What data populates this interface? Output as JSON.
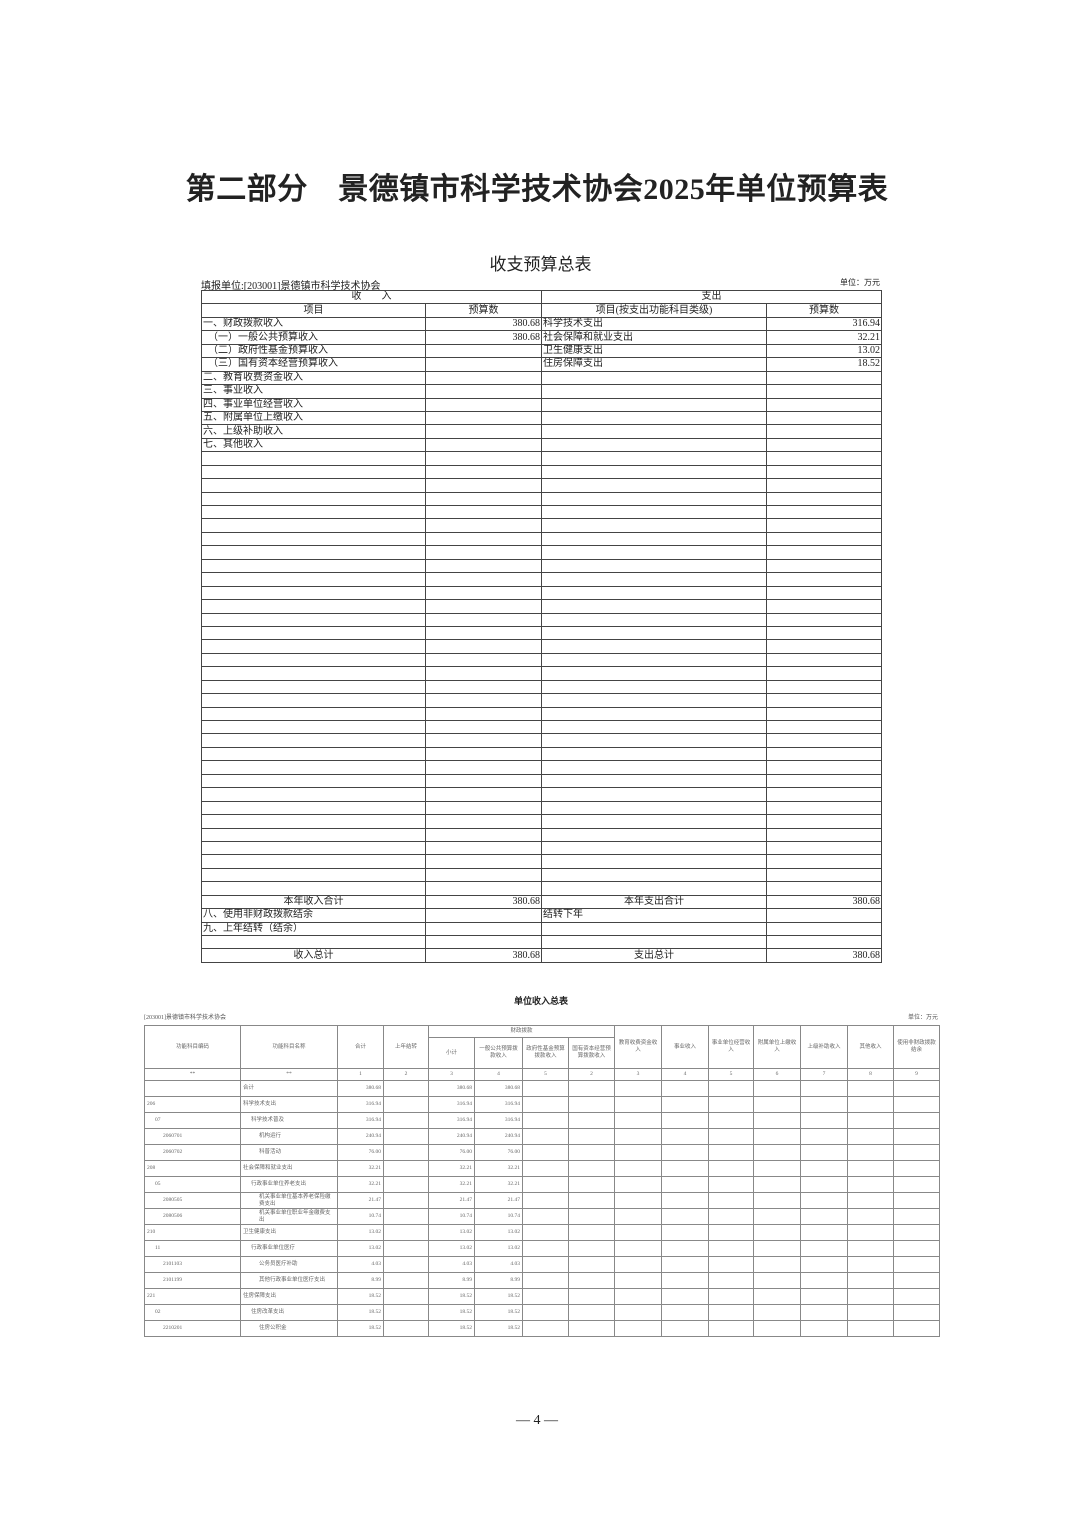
{
  "page_title": "第二部分　景德镇市科学技术协会2025年单位预算表",
  "table1": {
    "title": "收支预算总表",
    "unit_label": "填报单位:[203001]景德镇市科学技术协会",
    "unit": "单位：万元",
    "group_headers": [
      "收　　入",
      "支出"
    ],
    "headers": [
      "项目",
      "预算数",
      "项目(按支出功能科目类级)",
      "预算数"
    ],
    "rows": [
      [
        "一、财政拨款收入",
        "380.68",
        "科学技术支出",
        "316.94"
      ],
      [
        "　（一）一般公共预算收入",
        "380.68",
        "社会保障和就业支出",
        "32.21"
      ],
      [
        "　（二）政府性基金预算收入",
        "",
        "卫生健康支出",
        "13.02"
      ],
      [
        "　（三）国有资本经营预算收入",
        "",
        "住房保障支出",
        "18.52"
      ],
      [
        "二、教育收费资金收入",
        "",
        "",
        ""
      ],
      [
        "三、事业收入",
        "",
        "",
        ""
      ],
      [
        "四、事业单位经营收入",
        "",
        "",
        ""
      ],
      [
        "五、附属单位上缴收入",
        "",
        "",
        ""
      ],
      [
        "六、上级补助收入",
        "",
        "",
        ""
      ],
      [
        "七、其他收入",
        "",
        "",
        ""
      ]
    ],
    "footer_rows": [
      [
        "本年收入合计",
        "380.68",
        "本年支出合计",
        "380.68"
      ],
      [
        "八、使用非财政拨款结余",
        "",
        "结转下年",
        ""
      ],
      [
        "九、上年结转（结余）",
        "",
        "",
        ""
      ],
      [
        "",
        "",
        "",
        ""
      ],
      [
        "收入总计",
        "380.68",
        "支出总计",
        "380.68"
      ]
    ]
  },
  "table2": {
    "title": "单位收入总表",
    "unit_label": "[203001]景德镇市科学技术协会",
    "unit": "单位：万元",
    "headers": {
      "code": "功能科目编码",
      "name": "功能科目名称",
      "total": "合计",
      "carryover": "上年结转",
      "fiscal_group": "财政拨款",
      "fiscal_sub": [
        "小计",
        "一般公共预算拨款收入",
        "政府性基金预算拨款收入",
        "国有资本经营预算拨款收入"
      ],
      "others": [
        "教育收费资金收入",
        "事业收入",
        "事业单位经营收入",
        "附属单位上缴收入",
        "上级补助收入",
        "其他收入",
        "使用非财政拨款结余"
      ]
    },
    "index_row": [
      "**",
      "**",
      "1",
      "2",
      "3",
      "4",
      "5",
      "2",
      "3",
      "4",
      "5",
      "6",
      "7",
      "8",
      "9"
    ],
    "rows": [
      {
        "code": "",
        "name": "合计",
        "level": 0,
        "total": "380.68",
        "subtotal": "380.68",
        "general": "380.68"
      },
      {
        "code": "206",
        "name": "科学技术支出",
        "level": 0,
        "total": "316.94",
        "subtotal": "316.94",
        "general": "316.94"
      },
      {
        "code": "07",
        "name": "科学技术普及",
        "level": 1,
        "total": "316.94",
        "subtotal": "316.94",
        "general": "316.94"
      },
      {
        "code": "2060701",
        "name": "机构运行",
        "level": 2,
        "total": "240.94",
        "subtotal": "240.94",
        "general": "240.94"
      },
      {
        "code": "2060702",
        "name": "科普活动",
        "level": 2,
        "total": "76.00",
        "subtotal": "76.00",
        "general": "76.00"
      },
      {
        "code": "208",
        "name": "社会保障和就业支出",
        "level": 0,
        "total": "32.21",
        "subtotal": "32.21",
        "general": "32.21"
      },
      {
        "code": "05",
        "name": "行政事业单位养老支出",
        "level": 1,
        "total": "32.21",
        "subtotal": "32.21",
        "general": "32.21"
      },
      {
        "code": "2080505",
        "name": "机关事业单位基本养老保险缴费支出",
        "level": 2,
        "total": "21.47",
        "subtotal": "21.47",
        "general": "21.47"
      },
      {
        "code": "2080506",
        "name": "机关事业单位职业年金缴费支出",
        "level": 2,
        "total": "10.74",
        "subtotal": "10.74",
        "general": "10.74"
      },
      {
        "code": "210",
        "name": "卫生健康支出",
        "level": 0,
        "total": "13.02",
        "subtotal": "13.02",
        "general": "13.02"
      },
      {
        "code": "11",
        "name": "行政事业单位医疗",
        "level": 1,
        "total": "13.02",
        "subtotal": "13.02",
        "general": "13.02"
      },
      {
        "code": "2101103",
        "name": "公务员医疗补助",
        "level": 2,
        "total": "4.03",
        "subtotal": "4.03",
        "general": "4.03"
      },
      {
        "code": "2101199",
        "name": "其他行政事业单位医疗支出",
        "level": 2,
        "total": "8.99",
        "subtotal": "8.99",
        "general": "8.99"
      },
      {
        "code": "221",
        "name": "住房保障支出",
        "level": 0,
        "total": "18.52",
        "subtotal": "18.52",
        "general": "18.52"
      },
      {
        "code": "02",
        "name": "住房改革支出",
        "level": 1,
        "total": "18.52",
        "subtotal": "18.52",
        "general": "18.52"
      },
      {
        "code": "2210201",
        "name": "住房公积金",
        "level": 2,
        "total": "18.52",
        "subtotal": "18.52",
        "general": "18.52"
      }
    ]
  },
  "page_number": "— 4 —"
}
